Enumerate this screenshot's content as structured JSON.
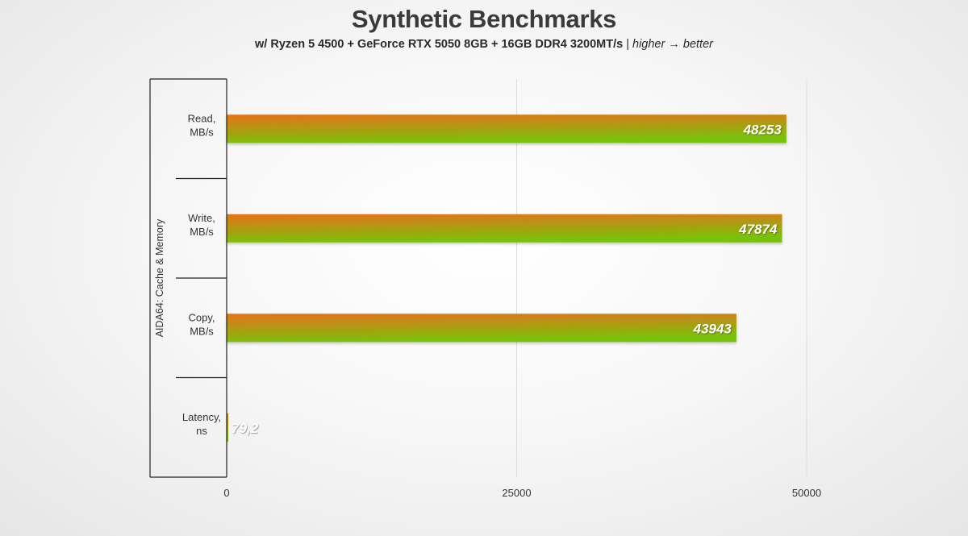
{
  "chart_data": {
    "type": "bar",
    "orientation": "horizontal",
    "title": "Synthetic Benchmarks",
    "subtitle_main": "w/ Ryzen 5 4500 + GeForce RTX 5050 8GB + 16GB DDR4 3200MT/s",
    "subtitle_separator": "|",
    "subtitle_note": "higher → better",
    "group_label": "AIDA64: Cache & Memory",
    "categories": [
      [
        "Read,",
        "MB/s"
      ],
      [
        "Write,",
        "MB/s"
      ],
      [
        "Copy,",
        "MB/s"
      ],
      [
        "Latency,",
        "ns"
      ]
    ],
    "values": [
      48253,
      47874,
      43943,
      79.2
    ],
    "value_labels": [
      "48253",
      "47874",
      "43943",
      "79,2"
    ],
    "xlim": [
      0,
      60000
    ],
    "xticks": [
      0,
      25000,
      50000
    ],
    "xtick_labels": [
      "0",
      "25000",
      "50000"
    ],
    "grid": "vertical",
    "legend": "none",
    "colors": {
      "bar_start": "#e8711a",
      "bar_end": "#78c20a",
      "text": "#333333",
      "grid": "#dcdcdc",
      "axis": "#222222"
    }
  }
}
